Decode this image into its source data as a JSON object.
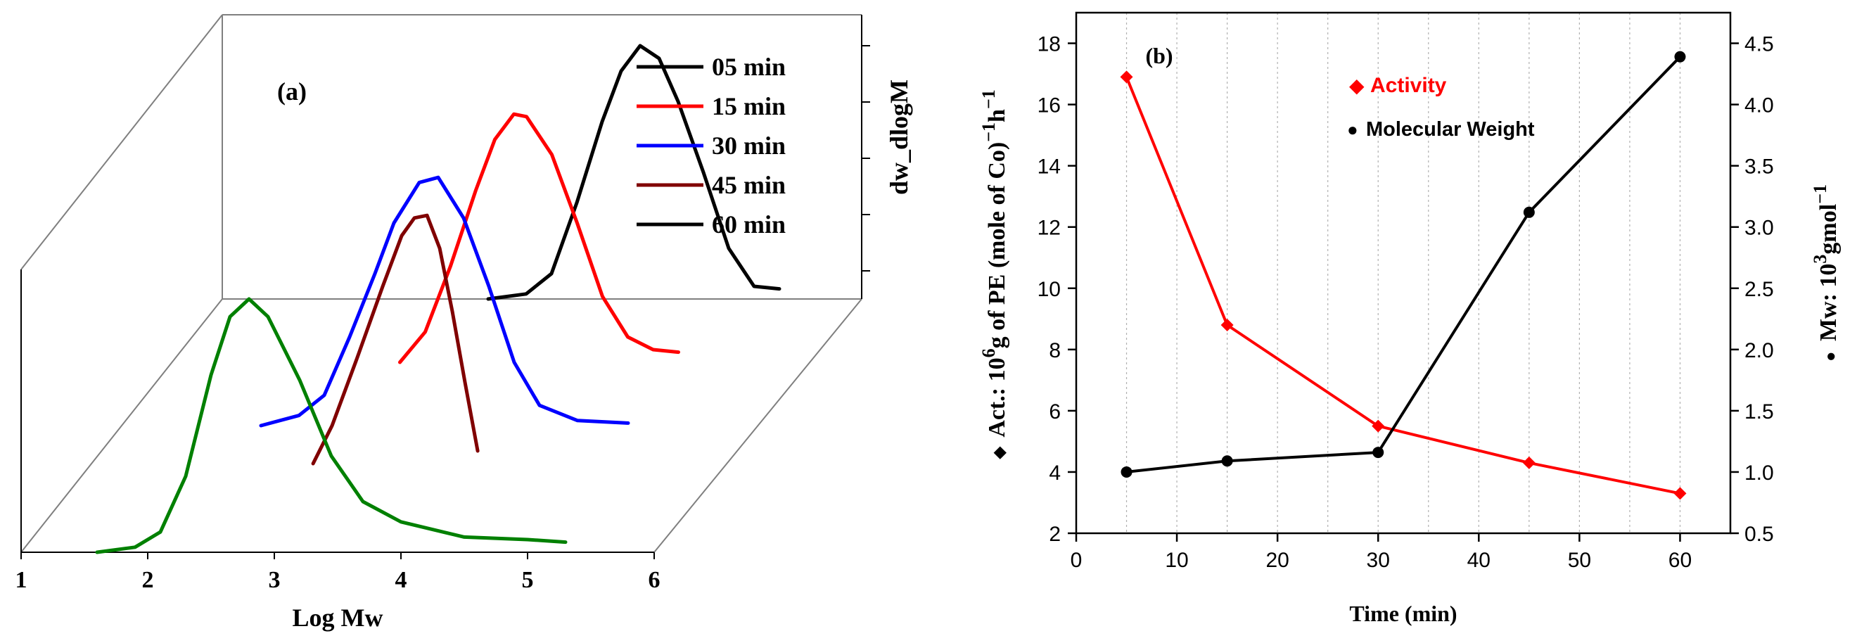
{
  "figure": {
    "panel_a_label": "(a)",
    "panel_b_label": "(b)"
  },
  "chart_data": [
    {
      "type": "line",
      "panel": "(a)",
      "projection": "3d-waterfall",
      "title": "",
      "xlabel": "Log Mw",
      "zlabel": "dw_dlogM",
      "xlim": [
        1,
        6
      ],
      "xticks": [
        "1",
        "2",
        "3",
        "4",
        "5",
        "6"
      ],
      "legend_position": "top-right",
      "series": [
        {
          "name": "05 min",
          "color": "#000000",
          "depth": 1.0,
          "points": [
            [
              3.1,
              0.0
            ],
            [
              3.4,
              0.02
            ],
            [
              3.6,
              0.1
            ],
            [
              3.8,
              0.38
            ],
            [
              4.0,
              0.7
            ],
            [
              4.15,
              0.9
            ],
            [
              4.3,
              1.0
            ],
            [
              4.45,
              0.95
            ],
            [
              4.6,
              0.78
            ],
            [
              4.8,
              0.5
            ],
            [
              5.0,
              0.2
            ],
            [
              5.2,
              0.05
            ],
            [
              5.4,
              0.04
            ]
          ]
        },
        {
          "name": "15 min",
          "color": "#ff0000",
          "depth": 0.75,
          "points": [
            [
              2.8,
              0.0
            ],
            [
              3.0,
              0.12
            ],
            [
              3.2,
              0.38
            ],
            [
              3.4,
              0.68
            ],
            [
              3.55,
              0.88
            ],
            [
              3.7,
              0.98
            ],
            [
              3.8,
              0.97
            ],
            [
              4.0,
              0.82
            ],
            [
              4.2,
              0.55
            ],
            [
              4.4,
              0.26
            ],
            [
              4.6,
              0.1
            ],
            [
              4.8,
              0.05
            ],
            [
              5.0,
              0.04
            ]
          ]
        },
        {
          "name": "30 min",
          "color": "#0000ff",
          "depth": 0.5,
          "points": [
            [
              2.1,
              0.0
            ],
            [
              2.4,
              0.04
            ],
            [
              2.6,
              0.12
            ],
            [
              2.8,
              0.35
            ],
            [
              3.0,
              0.6
            ],
            [
              3.15,
              0.8
            ],
            [
              3.35,
              0.96
            ],
            [
              3.5,
              0.98
            ],
            [
              3.7,
              0.82
            ],
            [
              3.9,
              0.55
            ],
            [
              4.1,
              0.25
            ],
            [
              4.3,
              0.08
            ],
            [
              4.6,
              0.02
            ],
            [
              5.0,
              0.01
            ]
          ]
        },
        {
          "name": "45 min",
          "color": "#800000",
          "depth": 0.35,
          "points": [
            [
              2.75,
              0.0
            ],
            [
              2.9,
              0.15
            ],
            [
              3.1,
              0.42
            ],
            [
              3.3,
              0.7
            ],
            [
              3.45,
              0.9
            ],
            [
              3.55,
              0.97
            ],
            [
              3.65,
              0.98
            ],
            [
              3.75,
              0.85
            ],
            [
              3.85,
              0.6
            ],
            [
              3.95,
              0.32
            ],
            [
              4.05,
              0.05
            ]
          ]
        },
        {
          "name": "60 min",
          "color": "#008000",
          "depth": 0.0,
          "points": [
            [
              1.6,
              0.0
            ],
            [
              1.9,
              0.02
            ],
            [
              2.1,
              0.08
            ],
            [
              2.3,
              0.3
            ],
            [
              2.5,
              0.7
            ],
            [
              2.65,
              0.93
            ],
            [
              2.8,
              1.0
            ],
            [
              2.95,
              0.93
            ],
            [
              3.2,
              0.68
            ],
            [
              3.45,
              0.38
            ],
            [
              3.7,
              0.2
            ],
            [
              4.0,
              0.12
            ],
            [
              4.5,
              0.06
            ],
            [
              5.0,
              0.05
            ],
            [
              5.3,
              0.04
            ]
          ]
        }
      ]
    },
    {
      "type": "line",
      "panel": "(b)",
      "title": "",
      "xlabel": "Time (min)",
      "ylabel": "Act.: 10^6 g of PE (mole of Co)^-1 h^-1",
      "ylabel_parts": {
        "marker": "◆",
        "p1": "Act.: 10",
        "sup1": "6",
        "p2": "g of PE (mole of Co)",
        "sup2": "−1",
        "p3": "h",
        "sup3": "−1"
      },
      "y2label": "Mw: 10^3 gmol^-1",
      "y2label_parts": {
        "marker": "●",
        "p1": "Mw: 10",
        "sup1": "3",
        "p2": "gmol",
        "sup2": "−1"
      },
      "xlim": [
        0,
        65
      ],
      "xticks": [
        "0",
        "10",
        "20",
        "30",
        "40",
        "50",
        "60"
      ],
      "ylim": [
        2,
        19
      ],
      "yticks": [
        "2",
        "4",
        "6",
        "8",
        "10",
        "12",
        "14",
        "16",
        "18"
      ],
      "y2lim": [
        0.5,
        4.75
      ],
      "y2ticks": [
        "0.5",
        "1.0",
        "1.5",
        "2.0",
        "2.5",
        "3.0",
        "3.5",
        "4.0",
        "4.5"
      ],
      "grid": "vertical-dotted",
      "legend_position": "top-center",
      "series": [
        {
          "name": "Activity",
          "marker": "◆",
          "axis": "left",
          "color": "#ff0000",
          "x": [
            5,
            15,
            30,
            45,
            60
          ],
          "y": [
            16.9,
            8.8,
            5.5,
            4.3,
            3.3
          ]
        },
        {
          "name": "Molecular Weight",
          "marker": "●",
          "axis": "right",
          "color": "#000000",
          "x": [
            5,
            15,
            30,
            45,
            60
          ],
          "y": [
            1.0,
            1.09,
            1.16,
            3.12,
            4.39
          ]
        }
      ]
    }
  ]
}
